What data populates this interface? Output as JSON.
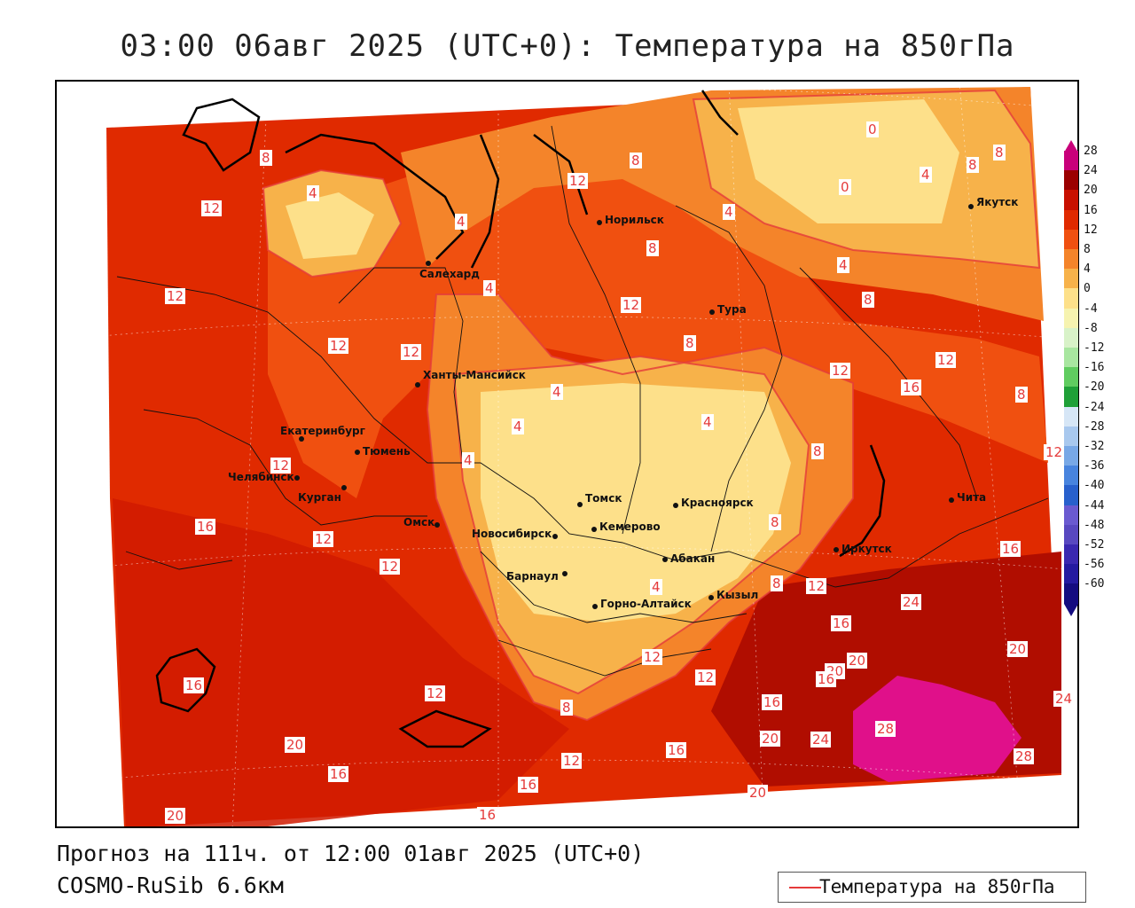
{
  "title": "03:00 06авг 2025 (UTC+0): Температура на 850гПа",
  "footer": {
    "forecast": "Прогноз на 111ч. от 12:00 01авг 2025 (UTC+0)",
    "model": "COSMO-RuSib 6.6км"
  },
  "legend": {
    "label": "Температура на 850гПа",
    "line_color": "#e53b3b"
  },
  "colorbar": {
    "levels": [
      "28",
      "24",
      "20",
      "16",
      "12",
      "8",
      "4",
      "0",
      "-4",
      "-8",
      "-12",
      "-16",
      "-20",
      "-24",
      "-28",
      "-32",
      "-36",
      "-40",
      "-44",
      "-48",
      "-52",
      "-56",
      "-60"
    ],
    "colors": [
      "#c8007a",
      "#9b0000",
      "#c81000",
      "#e02a00",
      "#f05010",
      "#f4842a",
      "#f7b24a",
      "#fde08a",
      "#f6f3b0",
      "#d8f2c8",
      "#a8e6a0",
      "#60cc60",
      "#1fa038",
      "#d6e6f6",
      "#a8c8ee",
      "#78a8e6",
      "#4884de",
      "#2860cc",
      "#6a5ad0",
      "#5848c0",
      "#3a28b0",
      "#241aa0",
      "#140c80"
    ]
  },
  "cities": [
    {
      "name": "Норильск"
    },
    {
      "name": "Салехард"
    },
    {
      "name": "Тура"
    },
    {
      "name": "Якутск"
    },
    {
      "name": "Ханты-Мансийск"
    },
    {
      "name": "Екатеринбург"
    },
    {
      "name": "Тюмень"
    },
    {
      "name": "Челябинск"
    },
    {
      "name": "Курган"
    },
    {
      "name": "Омск"
    },
    {
      "name": "Томск"
    },
    {
      "name": "Красноярск"
    },
    {
      "name": "Новосибирск"
    },
    {
      "name": "Кемерово"
    },
    {
      "name": "Абакан"
    },
    {
      "name": "Барнаул"
    },
    {
      "name": "Горно-Алтайск"
    },
    {
      "name": "Кызыл"
    },
    {
      "name": "Иркутск"
    },
    {
      "name": "Чита"
    }
  ],
  "contour_labels": [
    "8",
    "12",
    "4",
    "4",
    "12",
    "8",
    "4",
    "8",
    "0",
    "4",
    "0",
    "8",
    "8",
    "12",
    "4",
    "4",
    "12",
    "8",
    "8",
    "12",
    "8",
    "12",
    "12",
    "12",
    "4",
    "12",
    "4",
    "4",
    "16",
    "8",
    "8",
    "4",
    "12",
    "12",
    "16",
    "16",
    "12",
    "12",
    "4",
    "8",
    "12",
    "24",
    "16",
    "20",
    "20",
    "16",
    "20",
    "16",
    "12",
    "24",
    "16",
    "8",
    "20",
    "24",
    "28",
    "28",
    "20",
    "12",
    "16",
    "16",
    "20",
    "16",
    "16",
    "20",
    "12"
  ]
}
